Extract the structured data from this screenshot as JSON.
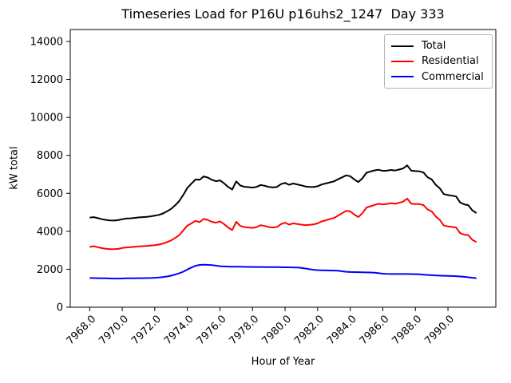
{
  "window": {
    "background": "#ffffff"
  },
  "chart_data": {
    "type": "line",
    "title": "Timeseries Load for P16U p16uhs2_1247  Day 333",
    "xlabel": "Hour of Year",
    "ylabel": "kW total",
    "x_start": 7968.0,
    "x_step": 0.25,
    "xlim": [
      7966.81,
      7992.94
    ],
    "ylim": [
      0,
      14630
    ],
    "grid": false,
    "legend_position": "upper right",
    "x_ticks": [
      "7968.0",
      "7970.0",
      "7972.0",
      "7974.0",
      "7976.0",
      "7978.0",
      "7980.0",
      "7982.0",
      "7984.0",
      "7986.0",
      "7988.0",
      "7990.0"
    ],
    "y_ticks": [
      "0",
      "2000",
      "4000",
      "6000",
      "8000",
      "10000",
      "12000",
      "14000"
    ],
    "series": [
      {
        "name": "Total",
        "color": "#000000",
        "values": [
          4720,
          4745,
          4690,
          4635,
          4600,
          4575,
          4565,
          4585,
          4635,
          4670,
          4685,
          4705,
          4730,
          4745,
          4765,
          4790,
          4820,
          4865,
          4940,
          5050,
          5180,
          5370,
          5590,
          5920,
          6290,
          6510,
          6730,
          6710,
          6890,
          6830,
          6715,
          6640,
          6680,
          6530,
          6340,
          6199,
          6630,
          6410,
          6345,
          6325,
          6300,
          6340,
          6440,
          6395,
          6335,
          6310,
          6340,
          6485,
          6550,
          6450,
          6515,
          6470,
          6420,
          6360,
          6340,
          6330,
          6375,
          6465,
          6520,
          6575,
          6630,
          6740,
          6840,
          6945,
          6905,
          6730,
          6595,
          6790,
          7085,
          7150,
          7210,
          7240,
          7185,
          7195,
          7230,
          7200,
          7250,
          7310,
          7470,
          7195,
          7170,
          7160,
          7095,
          6850,
          6735,
          6455,
          6265,
          5955,
          5910,
          5875,
          5835,
          5520,
          5420,
          5375,
          5100,
          4960
        ]
      },
      {
        "name": "Residential",
        "color": "#ff0000",
        "values": [
          3180,
          3210,
          3160,
          3110,
          3080,
          3060,
          3055,
          3075,
          3120,
          3150,
          3160,
          3180,
          3200,
          3215,
          3230,
          3250,
          3270,
          3300,
          3350,
          3430,
          3520,
          3650,
          3800,
          4050,
          4300,
          4420,
          4550,
          4480,
          4650,
          4600,
          4500,
          4450,
          4520,
          4380,
          4200,
          4064,
          4500,
          4280,
          4220,
          4200,
          4180,
          4220,
          4320,
          4280,
          4220,
          4200,
          4230,
          4380,
          4450,
          4350,
          4420,
          4380,
          4350,
          4320,
          4340,
          4360,
          4420,
          4520,
          4580,
          4640,
          4700,
          4820,
          4950,
          5080,
          5050,
          4880,
          4750,
          4950,
          5250,
          5320,
          5390,
          5450,
          5420,
          5440,
          5480,
          5450,
          5500,
          5560,
          5720,
          5450,
          5430,
          5430,
          5380,
          5150,
          5050,
          4780,
          4600,
          4300,
          4260,
          4230,
          4200,
          3900,
          3820,
          3800,
          3550,
          3430
        ]
      },
      {
        "name": "Commercial",
        "color": "#0000ff",
        "values": [
          1540,
          1535,
          1530,
          1525,
          1520,
          1515,
          1510,
          1510,
          1515,
          1520,
          1525,
          1525,
          1530,
          1530,
          1535,
          1540,
          1550,
          1565,
          1590,
          1620,
          1660,
          1720,
          1790,
          1870,
          1990,
          2090,
          2180,
          2230,
          2240,
          2230,
          2215,
          2190,
          2160,
          2150,
          2140,
          2135,
          2130,
          2130,
          2125,
          2125,
          2120,
          2120,
          2120,
          2115,
          2115,
          2110,
          2110,
          2105,
          2100,
          2100,
          2095,
          2090,
          2070,
          2040,
          2000,
          1970,
          1955,
          1945,
          1940,
          1935,
          1930,
          1920,
          1890,
          1865,
          1855,
          1850,
          1845,
          1840,
          1835,
          1830,
          1820,
          1790,
          1765,
          1755,
          1750,
          1750,
          1750,
          1750,
          1750,
          1745,
          1740,
          1730,
          1715,
          1700,
          1685,
          1675,
          1665,
          1655,
          1650,
          1645,
          1635,
          1620,
          1600,
          1575,
          1550,
          1530
        ]
      }
    ]
  }
}
